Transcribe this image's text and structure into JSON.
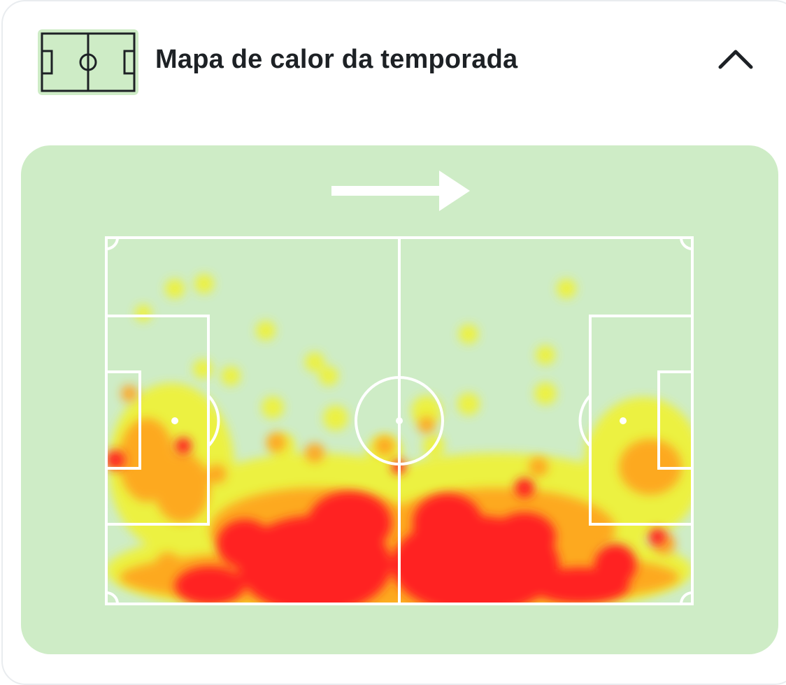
{
  "header": {
    "title": "Mapa de calor da temporada",
    "icon": "pitch-icon",
    "collapse_icon": "chevron-up-icon"
  },
  "heatmap": {
    "direction_icon": "arrow-right-icon",
    "colors": {
      "panel_bg": "#ceecc6",
      "lines": "#ffffff",
      "low": "#f2f22a",
      "mid": "#ffa21e",
      "high": "#ff2121"
    }
  }
}
